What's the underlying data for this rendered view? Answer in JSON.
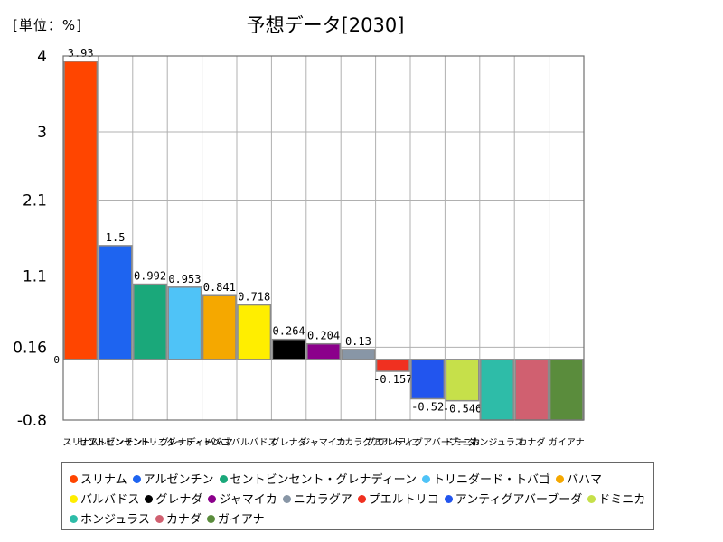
{
  "unit_label": "[単位：%]",
  "chart_data": {
    "type": "bar",
    "title": "予想データ[2030]",
    "categories": [
      "スリナム",
      "アルゼンチン",
      "セントビンセント・グレナディーン",
      "トリニダード・トバゴ",
      "バハマ",
      "バルバドス",
      "グレナダ",
      "ジャマイカ",
      "ニカラグア",
      "プエルトリコ",
      "アンティグアバーブーダ",
      "ドミニカ",
      "ホンジュラス",
      "カナダ",
      "ガイアナ"
    ],
    "values": [
      3.93,
      1.5,
      0.992,
      0.953,
      0.841,
      0.718,
      0.264,
      0.204,
      0.13,
      -0.157,
      -0.52,
      -0.546,
      null,
      null,
      null
    ],
    "value_labels": [
      "3.93",
      "1.5",
      "0.992",
      "0.953",
      "0.841",
      "0.718",
      "0.264",
      "0.204",
      "0.13",
      "-0.157",
      "-0.52",
      "-0.546",
      "",
      "",
      ""
    ],
    "colors": [
      "#ff4500",
      "#1e64f0",
      "#1aa87a",
      "#4fc3f7",
      "#f5a800",
      "#ffee00",
      "#000000",
      "#8b008b",
      "#8896a6",
      "#f03020",
      "#2255ee",
      "#c6e04a",
      "#2ebca8",
      "#d06070",
      "#5a8c3c"
    ],
    "yticks": [
      "4",
      "3",
      "2.1",
      "1.1",
      "0.16",
      "-0.8"
    ],
    "ytick_values": [
      4,
      3,
      2.1,
      1.1,
      0.16,
      -0.8
    ],
    "zero_label": "0",
    "ylim": [
      -0.8,
      4
    ],
    "grid": true,
    "legend_position": "bottom"
  }
}
